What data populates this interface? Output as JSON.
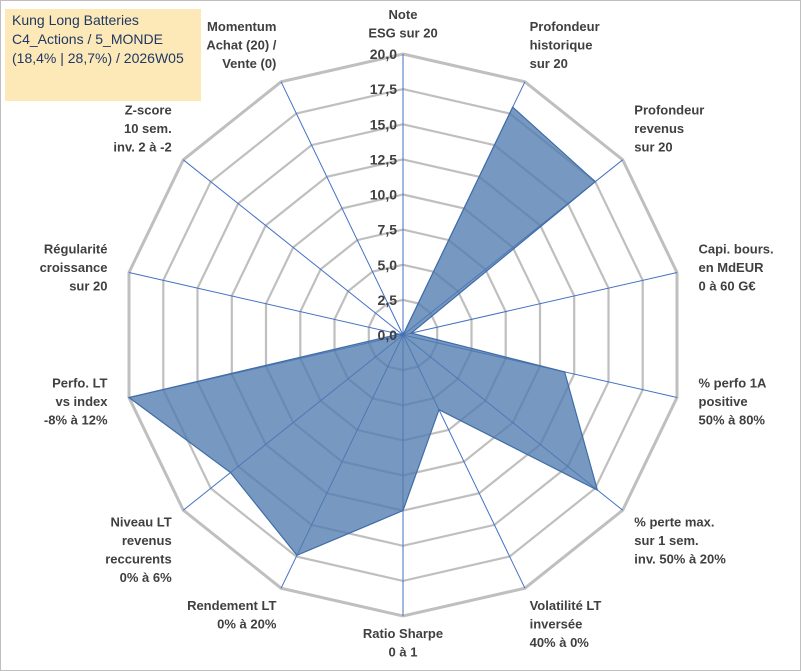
{
  "header": {
    "line1": "Kung Long Batteries",
    "line2": "C4_Actions / 5_MONDE",
    "line3": "(18,4% | 28,7%) / 2026W05"
  },
  "chart_data": {
    "type": "radar",
    "title": "",
    "rlim": [
      0,
      20
    ],
    "ticks": [
      "0,0",
      "2,5",
      "5,0",
      "7,5",
      "10,0",
      "12,5",
      "15,0",
      "17,5",
      "20,0"
    ],
    "grid": true,
    "categories": [
      [
        "Note",
        "ESG sur 20"
      ],
      [
        "Profondeur",
        "historique",
        "sur 20"
      ],
      [
        "Profondeur",
        "revenus",
        "sur 20"
      ],
      [
        "Capi. bours.",
        "en MdEUR",
        "0 à 60 G€"
      ],
      [
        "% perfo 1A",
        "positive",
        "50% à 80%"
      ],
      [
        "% perte max.",
        "sur 1 sem.",
        "inv. 50% à 20%"
      ],
      [
        "Volatilité LT",
        "inversée",
        "40% à 0%"
      ],
      [
        "Ratio Sharpe",
        "0 à 1"
      ],
      [
        "Rendement LT",
        "0% à 20%"
      ],
      [
        "Niveau LT",
        "revenus",
        "reccurents",
        "0% à 6%"
      ],
      [
        "Perfo. LT",
        "vs index",
        "-8% à 12%"
      ],
      [
        "Régularité",
        "croissance",
        "sur 20"
      ],
      [
        "Z-score",
        "10 sem.",
        "inv. 2 à -2"
      ],
      [
        "Momentum",
        "Achat (20) /",
        "Vente (0)"
      ]
    ],
    "series": [
      {
        "values": [
          0,
          18.0,
          17.5,
          0.6,
          11.8,
          17.7,
          5.9,
          12.5,
          17.4,
          15.7,
          20.0,
          0.3,
          0,
          0
        ],
        "color": "#4f7bb0"
      }
    ]
  }
}
